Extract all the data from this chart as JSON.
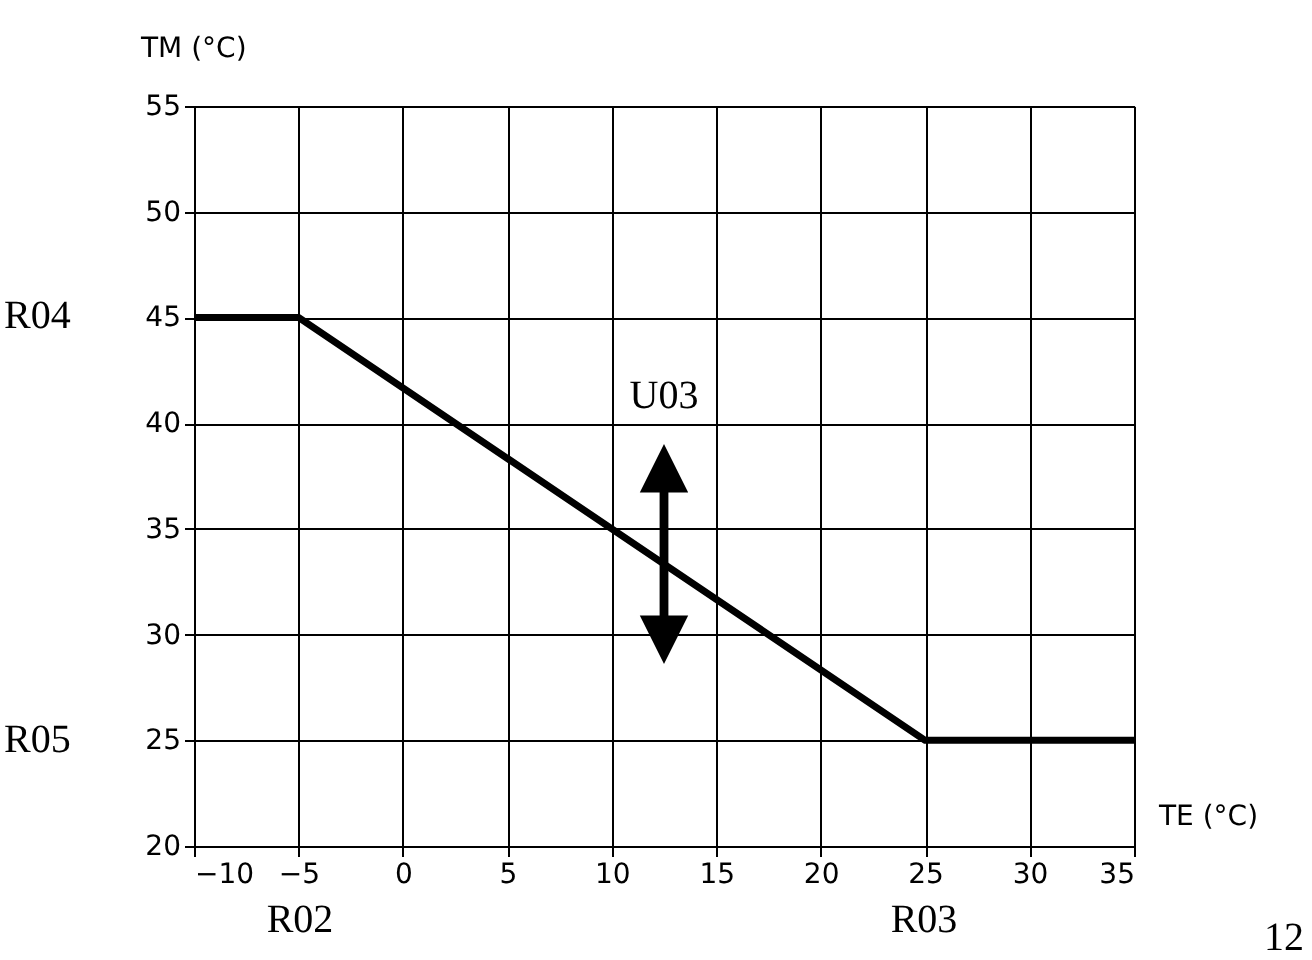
{
  "chart_data": {
    "type": "line",
    "xlabel": "TE (°C)",
    "ylabel": "TM (°C)",
    "x": [
      -10,
      -5,
      25,
      35
    ],
    "series": [
      {
        "color": "#000000",
        "values": [
          45,
          45,
          25,
          25
        ]
      }
    ],
    "xlim": [
      -10,
      35
    ],
    "xticks": [
      -10,
      -5,
      0,
      5,
      10,
      15,
      20,
      25,
      30,
      35
    ],
    "ylim": [
      20,
      55
    ],
    "yticks": [
      20,
      25,
      30,
      35,
      40,
      45,
      50,
      55
    ],
    "grid": true,
    "marker": "none",
    "line_style": "solid",
    "annotations": [
      "R04",
      "R05",
      "R02",
      "R03",
      "U03",
      "12"
    ]
  }
}
